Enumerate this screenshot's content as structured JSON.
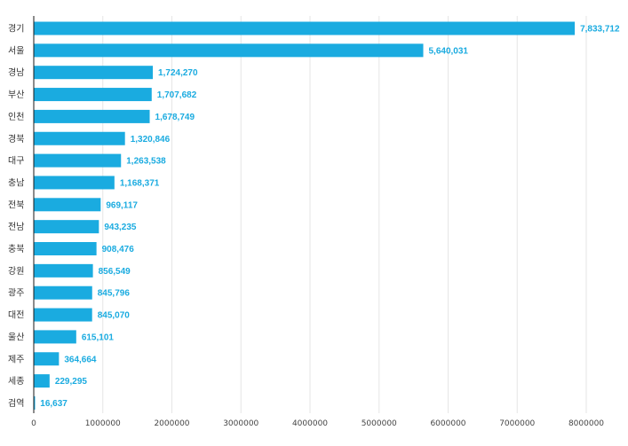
{
  "chart_data": {
    "type": "bar",
    "orientation": "horizontal",
    "categories": [
      "경기",
      "서울",
      "경남",
      "부산",
      "인천",
      "경북",
      "대구",
      "충남",
      "전북",
      "전남",
      "충북",
      "강원",
      "광주",
      "대전",
      "울산",
      "제주",
      "세종",
      "검역"
    ],
    "values": [
      7833712,
      5640031,
      1724270,
      1707682,
      1678749,
      1320846,
      1263538,
      1168371,
      969117,
      943235,
      908476,
      856549,
      845796,
      845070,
      615101,
      364664,
      229295,
      16637
    ],
    "value_labels": [
      "7,833,712",
      "5,640,031",
      "1,724,270",
      "1,707,682",
      "1,678,749",
      "1,320,846",
      "1,263,538",
      "1,168,371",
      "969,117",
      "943,235",
      "908,476",
      "856,549",
      "845,796",
      "845,070",
      "615,101",
      "364,664",
      "229,295",
      "16,637"
    ],
    "x_ticks": [
      "0",
      "1000000",
      "2000000",
      "3000000",
      "4000000",
      "5000000",
      "6000000",
      "7000000",
      "8000000"
    ],
    "xlim": [
      0,
      8000000
    ],
    "grid": true,
    "legend": "none",
    "colors": {
      "bar": "#1aabe0",
      "data_label": "#1aabe0",
      "grid": "#e6e6e6",
      "axis": "#1a1a1a"
    }
  }
}
